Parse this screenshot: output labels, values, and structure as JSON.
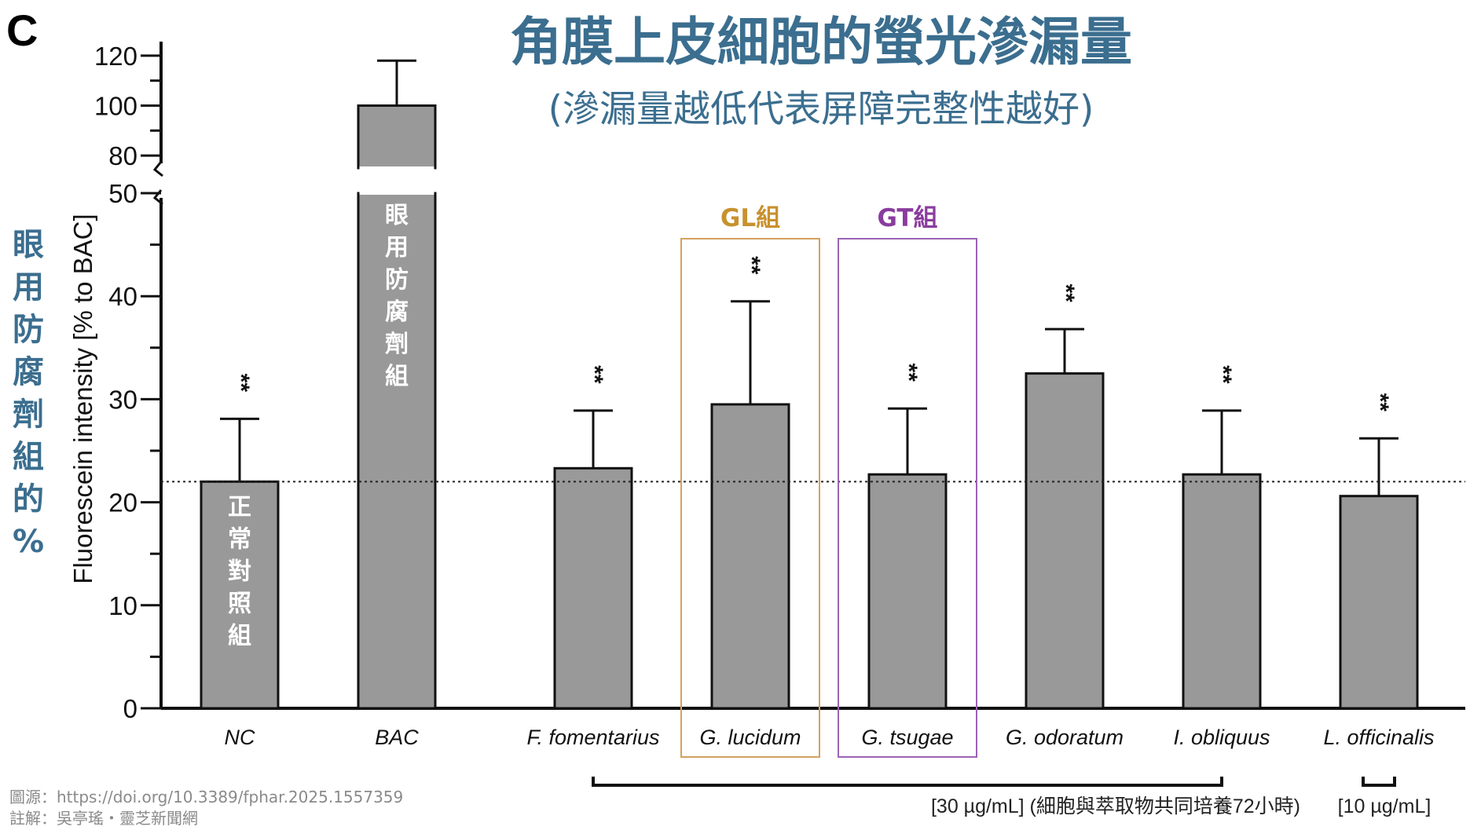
{
  "panel_label": "C",
  "title": "角膜上皮細胞的螢光滲漏量",
  "subtitle": "(滲漏量越低代表屏障完整性越好)",
  "left_note": "眼用防腐劑組的%",
  "source_line": "圖源：https://doi.org/10.3389/fphar.2025.1557359",
  "note_line": "註解：吳亭瑤・靈芝新聞網",
  "colors": {
    "bar": "#999999",
    "title": "#3b6e8f",
    "gl_box": "#d4a15e",
    "gl_text": "#c8912f",
    "gt_box": "#9b63b5",
    "gt_text": "#8a3c9e"
  },
  "chart_data": {
    "type": "bar",
    "ylabel": "Fluorescein intensity [% to BAC]",
    "ylim_lower": [
      0,
      50
    ],
    "ylim_upper": [
      75,
      125
    ],
    "axis_break": true,
    "lower_ticks": [
      "0",
      "10",
      "20",
      "30",
      "40",
      "50"
    ],
    "upper_ticks": [
      "80",
      "100",
      "120"
    ],
    "reference_line": 22,
    "categories": [
      "NC",
      "BAC",
      "F. fomentarius",
      "G. lucidum",
      "G. tsugae",
      "G. odoratum",
      "I. obliquus",
      "L. officinalis"
    ],
    "values": [
      22,
      100,
      23.3,
      29.5,
      22.7,
      32.5,
      22.7,
      20.6
    ],
    "error_upper": [
      28.1,
      118,
      28.9,
      39.5,
      29.1,
      36.8,
      28.9,
      26.2
    ],
    "significance": [
      "**",
      "",
      "**",
      "**",
      "**",
      "**",
      "**",
      "**"
    ],
    "bar_labels": [
      "正常對照組",
      "眼用防腐劑組",
      "",
      "",
      "",
      "",
      "",
      ""
    ],
    "groups": [
      {
        "label": "GL組",
        "category": "G. lucidum",
        "color": "#c8912f"
      },
      {
        "label": "GT組",
        "category": "G. tsugae",
        "color": "#8a3c9e"
      }
    ],
    "concentrations": [
      {
        "label": "[30 µg/mL]",
        "note": "(細胞與萃取物共同培養72小時)",
        "from": "F. fomentarius",
        "to": "I. obliquus"
      },
      {
        "label": "[10 µg/mL]",
        "note": "",
        "from": "L. officinalis",
        "to": "L. officinalis"
      }
    ]
  }
}
